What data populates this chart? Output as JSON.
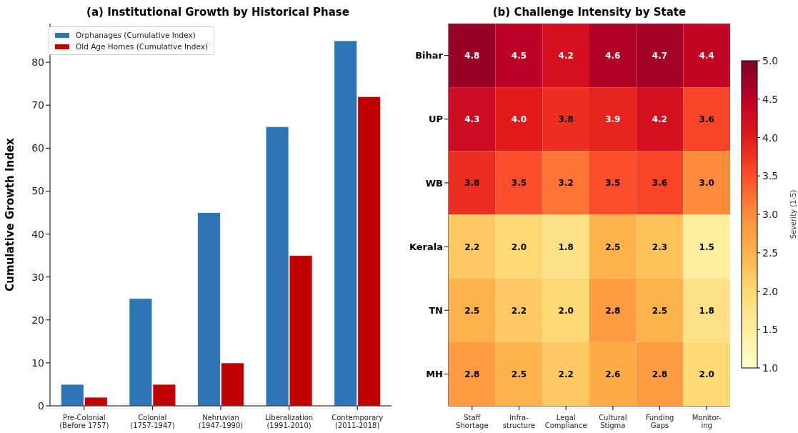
{
  "chart_data": [
    {
      "type": "bar",
      "title": "(a) Institutional Growth by Historical Phase",
      "ylabel": "Cumulative Growth Index",
      "categories": [
        "Pre-Colonial\n(Before 1757)",
        "Colonial\n(1757-1947)",
        "Nehruvian\n(1947-1990)",
        "Liberalization\n(1991-2010)",
        "Contemporary\n(2011-2018)"
      ],
      "series": [
        {
          "name": "Orphanages (Cumulative Index)",
          "color": "#2e75b6",
          "values": [
            5,
            25,
            45,
            65,
            85
          ]
        },
        {
          "name": "Old Age Homes (Cumulative Index)",
          "color": "#c00000",
          "values": [
            2,
            5,
            10,
            35,
            72
          ]
        }
      ],
      "ylim": [
        0,
        89
      ],
      "yticks": [
        0,
        10,
        20,
        30,
        40,
        50,
        60,
        70,
        80
      ],
      "grid": false,
      "legend": "top left"
    },
    {
      "type": "heatmap",
      "title": "(b) Challenge Intensity by State",
      "clabel": "Severity (1-5)",
      "categories": [
        "Staff\nShortage",
        "Infra-\nstructure",
        "Legal\nCompliance",
        "Cultural\nStigma",
        "Funding\nGaps",
        "Monitor-\ning"
      ],
      "y_categories": [
        "Bihar",
        "UP",
        "WB",
        "Kerala",
        "TN",
        "MH"
      ],
      "cells": [
        [
          4.8,
          4.5,
          4.2,
          4.6,
          4.7,
          4.4
        ],
        [
          4.3,
          4.0,
          3.8,
          3.9,
          4.2,
          3.6
        ],
        [
          3.8,
          3.5,
          3.2,
          3.5,
          3.6,
          3.0
        ],
        [
          2.2,
          2.0,
          1.8,
          2.5,
          2.3,
          1.5
        ],
        [
          2.5,
          2.2,
          2.0,
          2.8,
          2.5,
          1.8
        ],
        [
          2.8,
          2.5,
          2.2,
          2.6,
          2.8,
          2.0
        ]
      ],
      "cell_labels": [
        [
          "4.8",
          "4.5",
          "4.2",
          "4.6",
          "4.7",
          "4.4"
        ],
        [
          "4.3",
          "4.0",
          "3.8",
          "3.9",
          "4.2",
          "3.6"
        ],
        [
          "3.8",
          "3.5",
          "3.2",
          "3.5",
          "3.6",
          "3.0"
        ],
        [
          "2.2",
          "2.0",
          "1.8",
          "2.5",
          "2.3",
          "1.5"
        ],
        [
          "2.5",
          "2.2",
          "2.0",
          "2.8",
          "2.5",
          "1.8"
        ],
        [
          "2.8",
          "2.5",
          "2.2",
          "2.6",
          "2.8",
          "2.0"
        ]
      ],
      "clim": [
        1,
        5
      ],
      "cticks": [
        {
          "value": 1,
          "label": "1.0"
        },
        1.5,
        {
          "value": 2,
          "label": "2.0"
        },
        2.5,
        {
          "value": 3,
          "label": "3.0"
        },
        3.5,
        {
          "value": 4,
          "label": "4.0"
        },
        4.5,
        {
          "value": 5,
          "label": "5.0"
        }
      ]
    }
  ]
}
